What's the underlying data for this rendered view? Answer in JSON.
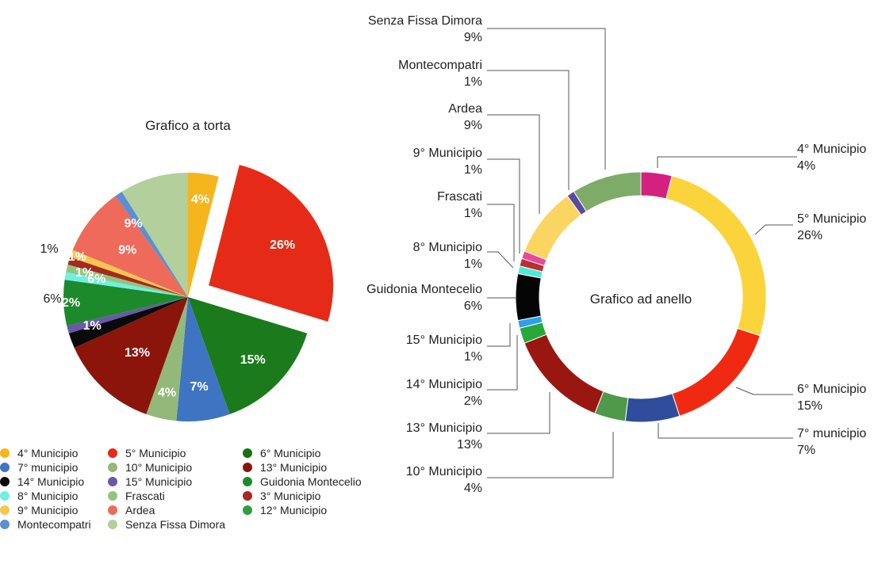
{
  "chart_data": [
    {
      "type": "pie",
      "title": "Grafico a torta",
      "slices": [
        {
          "label": "4° Municipio",
          "value": 4,
          "color": "#f5b51d"
        },
        {
          "label": "5° Municipio",
          "value": 26,
          "color": "#e52b17"
        },
        {
          "label": "6° Municipio",
          "value": 15,
          "color": "#1b7a1b"
        },
        {
          "label": "7° municipio",
          "value": 7,
          "color": "#3f74c2"
        },
        {
          "label": "10° Municipio",
          "value": 4,
          "color": "#93b97a"
        },
        {
          "label": "13° Municipio",
          "value": 13,
          "color": "#8b150b"
        },
        {
          "label": "14° Municipio",
          "value": 2,
          "color": "#0a0a0a"
        },
        {
          "label": "15° Municipio",
          "value": 1,
          "color": "#6a58a8"
        },
        {
          "label": "Guidonia Montecelio",
          "value": 6,
          "color": "#1c8a2a"
        },
        {
          "label": "8° Municipio",
          "value": 1,
          "color": "#6ff0e2"
        },
        {
          "label": "Frascati",
          "value": 1,
          "color": "#93c47d"
        },
        {
          "label": "3° Municipio",
          "value": 1,
          "color": "#a52a1f"
        },
        {
          "label": "9° Municipio",
          "value": 1,
          "color": "#f6c64e"
        },
        {
          "label": "Ardea",
          "value": 9,
          "color": "#ee6a5a"
        },
        {
          "label": "12° Municipio",
          "value": 0,
          "color": "#2e9e3e"
        },
        {
          "label": "Montecompatri",
          "value": 1,
          "color": "#5b8fcf"
        },
        {
          "label": "Senza Fissa Dimora",
          "value": 9,
          "color": "#b2cf9c"
        }
      ],
      "data_labels": [
        "4%",
        "26%",
        "15%",
        "7%",
        "4%",
        "13%",
        "",
        "1%",
        "2%",
        "6%",
        "1%",
        "1%",
        "1%",
        "9%",
        "1%",
        "9%"
      ]
    },
    {
      "type": "pie",
      "subtype": "donut",
      "title": "Grafico ad anello",
      "slices": [
        {
          "label": "4° Municipio",
          "value": 4,
          "color": "#d4217f"
        },
        {
          "label": "5° Municipio",
          "value": 26,
          "color": "#fbd43c"
        },
        {
          "label": "6° Municipio",
          "value": 15,
          "color": "#f02a12"
        },
        {
          "label": "7° municipio",
          "value": 7,
          "color": "#2f4d9c"
        },
        {
          "label": "10° Municipio",
          "value": 4,
          "color": "#4e9a4a"
        },
        {
          "label": "13° Municipio",
          "value": 13,
          "color": "#9a1711"
        },
        {
          "label": "14° Municipio",
          "value": 2,
          "color": "#27a83a"
        },
        {
          "label": "15° Municipio",
          "value": 1,
          "color": "#2aa0ee"
        },
        {
          "label": "Guidonia Montecelio",
          "value": 6,
          "color": "#050505"
        },
        {
          "label": "8° Municipio",
          "value": 1,
          "color": "#4fe9d9"
        },
        {
          "label": "Frascati",
          "value": 1,
          "color": "#b63232"
        },
        {
          "label": "9° Municipio",
          "value": 1,
          "color": "#e8499a"
        },
        {
          "label": "Ardea",
          "value": 9,
          "color": "#fbd561"
        },
        {
          "label": "Montecompatri",
          "value": 1,
          "color": "#5a4aa0"
        },
        {
          "label": "Senza Fissa Dimora",
          "value": 9,
          "color": "#7eab67"
        }
      ],
      "callouts": [
        {
          "name": "4° Municipio",
          "pct": "4%"
        },
        {
          "name": "5° Municipio",
          "pct": "26%"
        },
        {
          "name": "6° Municipio",
          "pct": "15%"
        },
        {
          "name": "7° municipio",
          "pct": "7%"
        },
        {
          "name": "10° Municipio",
          "pct": "4%"
        },
        {
          "name": "13° Municipio",
          "pct": "13%"
        },
        {
          "name": "14° Municipio",
          "pct": "2%"
        },
        {
          "name": "15° Municipio",
          "pct": "1%"
        },
        {
          "name": "Guidonia Montecelio",
          "pct": "6%"
        },
        {
          "name": "8° Municipio",
          "pct": "1%"
        },
        {
          "name": "Frascati",
          "pct": "1%"
        },
        {
          "name": "9° Municipio",
          "pct": "1%"
        },
        {
          "name": "Ardea",
          "pct": "9%"
        },
        {
          "name": "Montecompatri",
          "pct": "1%"
        },
        {
          "name": "Senza Fissa Dimora",
          "pct": "9%"
        }
      ]
    }
  ],
  "legend": [
    {
      "label": "4° Municipio",
      "color": "#f5b51d"
    },
    {
      "label": "5° Municipio",
      "color": "#e52b17"
    },
    {
      "label": "6° Municipio",
      "color": "#1b6e12"
    },
    {
      "label": "7° municipio",
      "color": "#3f74c2"
    },
    {
      "label": "10° Municipio",
      "color": "#93b97a"
    },
    {
      "label": "13° Municipio",
      "color": "#8b150b"
    },
    {
      "label": "14° Municipio",
      "color": "#0a0a0a"
    },
    {
      "label": "15° Municipio",
      "color": "#6a58a8"
    },
    {
      "label": "Guidonia Montecelio",
      "color": "#1c8a2a"
    },
    {
      "label": "8° Municipio",
      "color": "#6ff0e2"
    },
    {
      "label": "Frascati",
      "color": "#93c47d"
    },
    {
      "label": "3° Municipio",
      "color": "#a52a1f"
    },
    {
      "label": "9° Municipio",
      "color": "#f6c64e"
    },
    {
      "label": "Ardea",
      "color": "#ee6a5a"
    },
    {
      "label": "12° Municipio",
      "color": "#2e9e3e"
    },
    {
      "label": "Montecompatri",
      "color": "#5b8fcf"
    },
    {
      "label": "Senza Fissa Dimora",
      "color": "#b2cf9c"
    }
  ]
}
